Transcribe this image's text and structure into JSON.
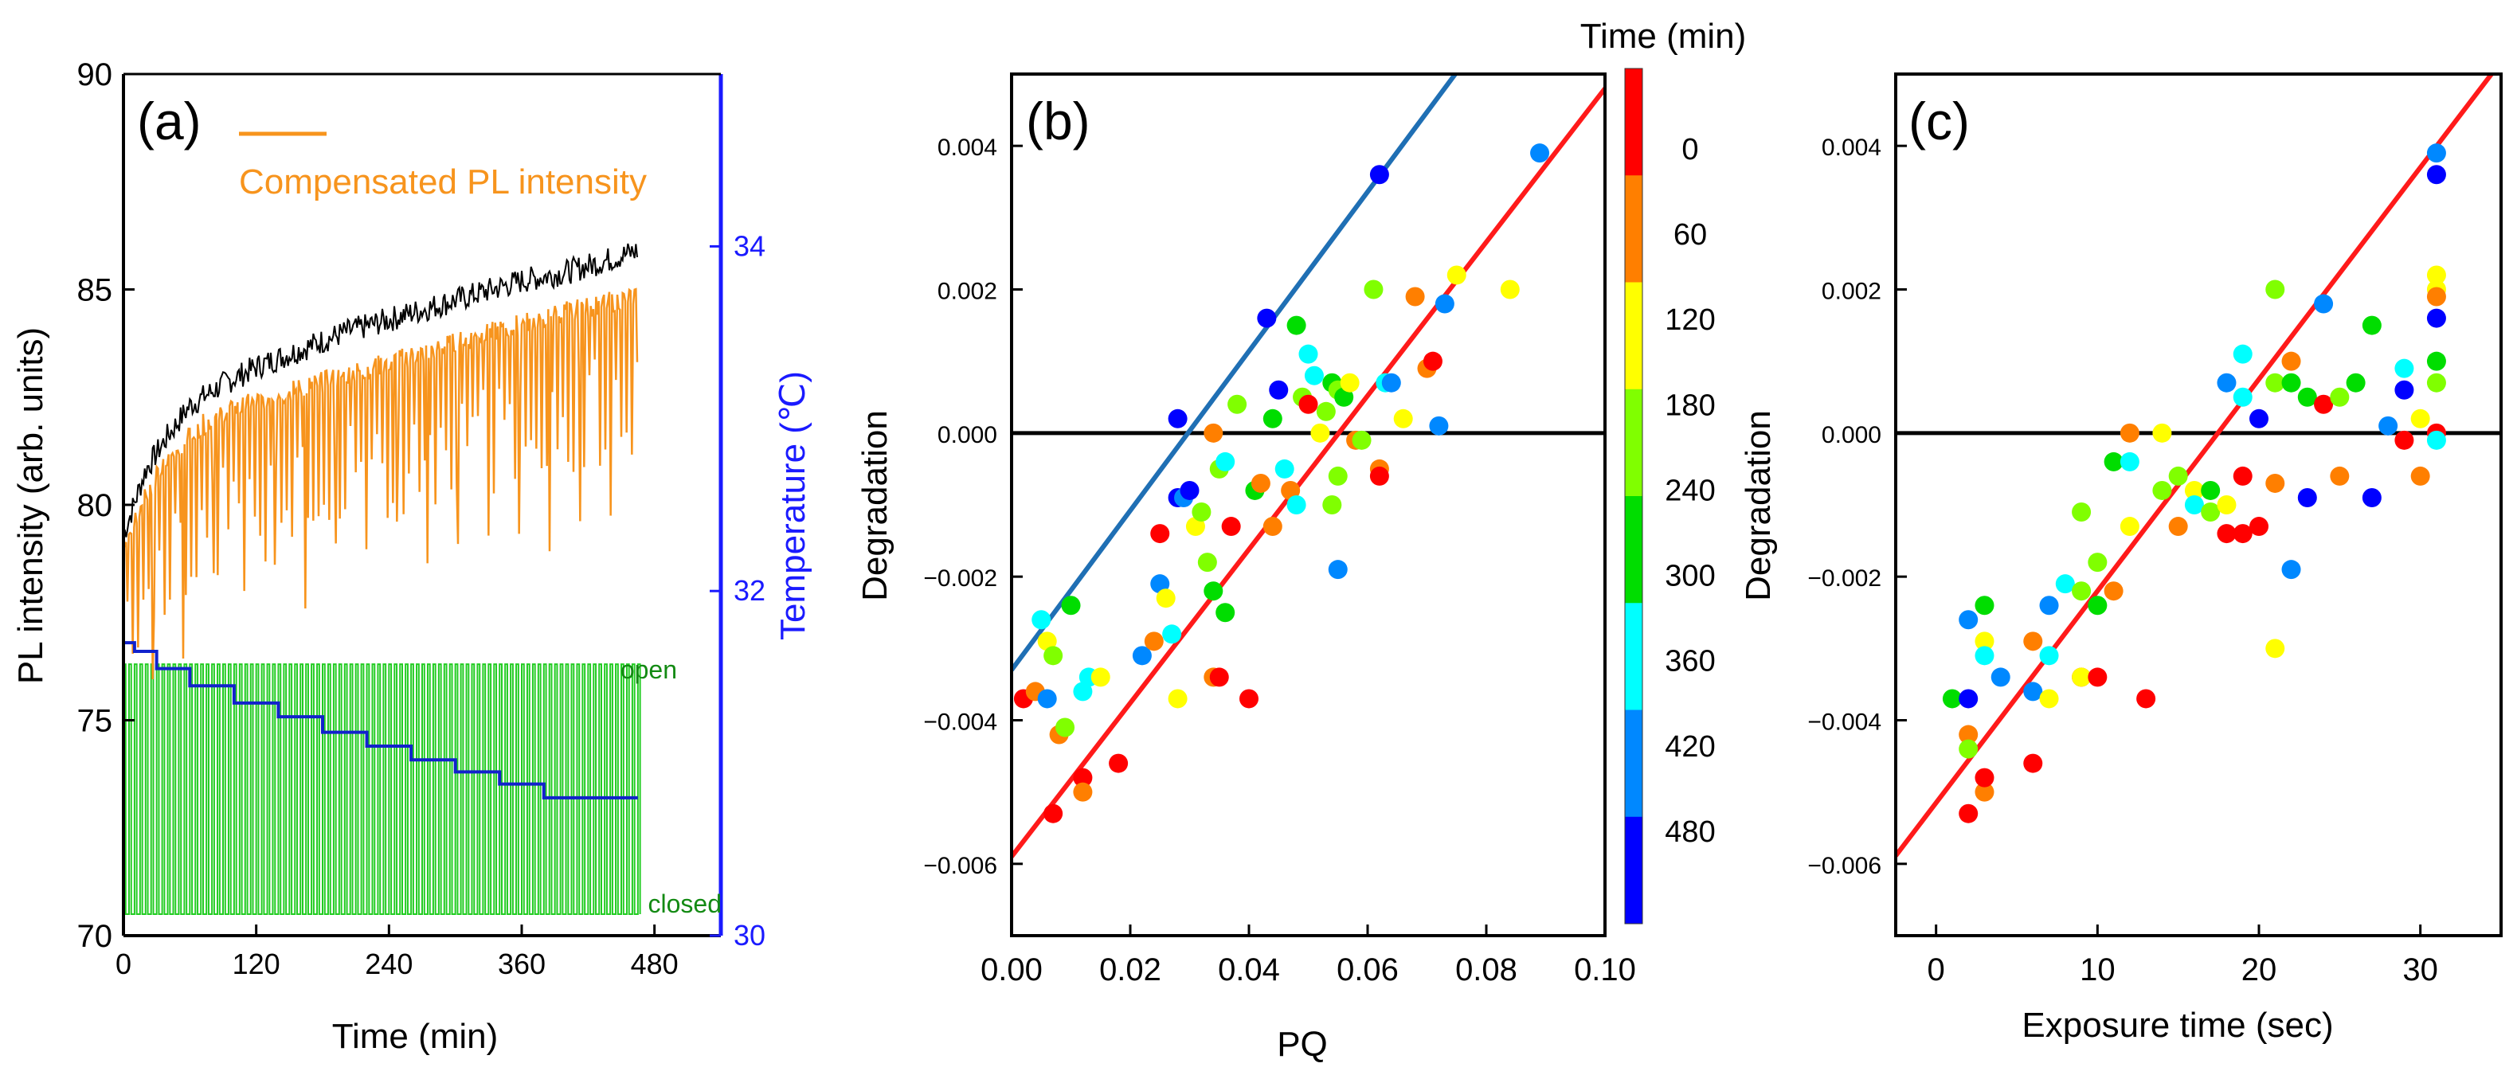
{
  "chart_data": [
    {
      "panel": "(a)",
      "type": "line",
      "xlabel": "Time (min)",
      "ylabel": "PL intensity (arb. units)",
      "y2label": "Temperature (℃)",
      "xlim": [
        0,
        540
      ],
      "ylim": [
        70,
        90
      ],
      "y2lim": [
        30,
        35
      ],
      "xticks": [
        0,
        120,
        240,
        360,
        480
      ],
      "xtick_labels": [
        "0",
        "120",
        "240",
        "360",
        "480"
      ],
      "yticks": [
        70,
        75,
        80,
        85,
        90
      ],
      "ytick_labels": [
        "70",
        "75",
        "80",
        "85",
        "90"
      ],
      "y2ticks": [
        30,
        32,
        34
      ],
      "y2tick_labels": [
        "30",
        "32",
        "34"
      ],
      "legend": "Compensated PL intensity",
      "shutter_labels": [
        "open",
        "closed"
      ],
      "colors": {
        "raw": "#000000",
        "compensated": "#f7941d",
        "temperature": "#1122cc",
        "shutter": "#22cc22",
        "y2axis": "#1a1aff"
      },
      "series": [
        {
          "name": "PL intensity",
          "color": "#000000",
          "x": [
            0,
            20,
            40,
            60,
            90,
            120,
            160,
            200,
            240,
            280,
            320,
            360,
            400,
            440,
            465
          ],
          "y": [
            79.3,
            80.8,
            81.6,
            82.3,
            82.8,
            83.2,
            83.6,
            84.0,
            84.3,
            84.6,
            84.9,
            85.2,
            85.4,
            85.7,
            85.9
          ]
        },
        {
          "name": "Compensated PL intensity",
          "color": "#f7941d",
          "x": [
            0,
            20,
            40,
            60,
            90,
            120,
            160,
            200,
            240,
            280,
            320,
            360,
            400,
            440,
            465
          ],
          "y": [
            79.0,
            80.3,
            81.0,
            81.7,
            82.1,
            82.4,
            82.7,
            83.0,
            83.3,
            83.6,
            83.9,
            84.2,
            84.5,
            84.7,
            84.9
          ]
        },
        {
          "name": "Temperature",
          "color": "#1122cc",
          "axis": "right",
          "x": [
            0,
            10,
            10,
            30,
            30,
            60,
            60,
            100,
            100,
            140,
            140,
            180,
            180,
            220,
            220,
            260,
            260,
            300,
            300,
            340,
            340,
            380,
            380,
            465
          ],
          "y": [
            31.7,
            31.7,
            31.65,
            31.65,
            31.55,
            31.55,
            31.45,
            31.45,
            31.35,
            31.35,
            31.27,
            31.27,
            31.18,
            31.18,
            31.1,
            31.1,
            31.02,
            31.02,
            30.95,
            30.95,
            30.88,
            30.88,
            30.8,
            30.8
          ]
        }
      ]
    },
    {
      "panel": "(b)",
      "type": "scatter",
      "xlabel": "PQ",
      "ylabel": "Degradation",
      "xlim": [
        0.0,
        0.1
      ],
      "ylim": [
        -0.007,
        0.005
      ],
      "xticks": [
        0.0,
        0.02,
        0.04,
        0.06,
        0.08,
        0.1
      ],
      "xtick_labels": [
        "0.00",
        "0.02",
        "0.04",
        "0.06",
        "0.08",
        "0.10"
      ],
      "yticks": [
        -0.006,
        -0.004,
        -0.002,
        0.0,
        0.002,
        0.004
      ],
      "ytick_labels": [
        "−0.006",
        "−0.004",
        "−0.002",
        "0.000",
        "0.002",
        "0.004"
      ],
      "colorbar": {
        "title": "Time (min)",
        "labels": [
          "0",
          "60",
          "120",
          "180",
          "240",
          "300",
          "360",
          "420",
          "480"
        ],
        "colors": [
          "#ff0000",
          "#ff7f00",
          "#ffff00",
          "#80ff00",
          "#00dd00",
          "#00ffff",
          "#0088ff",
          "#0000ff"
        ]
      },
      "lines": [
        {
          "color": "#1f6fb4",
          "slope": 0.111,
          "intercept": -0.0033
        },
        {
          "color": "#ff1a1a",
          "slope": 0.107,
          "intercept": -0.0059
        }
      ],
      "points": [
        {
          "x": 0.002,
          "y": -0.0037,
          "c": 0
        },
        {
          "x": 0.004,
          "y": -0.0036,
          "c": 1
        },
        {
          "x": 0.006,
          "y": -0.0029,
          "c": 2
        },
        {
          "x": 0.007,
          "y": -0.0031,
          "c": 3
        },
        {
          "x": 0.005,
          "y": -0.0026,
          "c": 5
        },
        {
          "x": 0.006,
          "y": -0.0037,
          "c": 6
        },
        {
          "x": 0.008,
          "y": -0.0042,
          "c": 1
        },
        {
          "x": 0.009,
          "y": -0.0041,
          "c": 3
        },
        {
          "x": 0.01,
          "y": -0.0024,
          "c": 4
        },
        {
          "x": 0.012,
          "y": -0.0048,
          "c": 0
        },
        {
          "x": 0.012,
          "y": -0.005,
          "c": 1
        },
        {
          "x": 0.013,
          "y": -0.0034,
          "c": 5
        },
        {
          "x": 0.015,
          "y": -0.0034,
          "c": 2
        },
        {
          "x": 0.018,
          "y": -0.0046,
          "c": 0
        },
        {
          "x": 0.007,
          "y": -0.0053,
          "c": 0
        },
        {
          "x": 0.012,
          "y": -0.0036,
          "c": 5
        },
        {
          "x": 0.022,
          "y": -0.0031,
          "c": 6
        },
        {
          "x": 0.024,
          "y": -0.0029,
          "c": 1
        },
        {
          "x": 0.025,
          "y": -0.0021,
          "c": 6
        },
        {
          "x": 0.025,
          "y": -0.0014,
          "c": 0
        },
        {
          "x": 0.026,
          "y": -0.0023,
          "c": 2
        },
        {
          "x": 0.027,
          "y": -0.0028,
          "c": 5
        },
        {
          "x": 0.028,
          "y": -0.0037,
          "c": 2
        },
        {
          "x": 0.028,
          "y": -0.0009,
          "c": 7
        },
        {
          "x": 0.029,
          "y": -0.0009,
          "c": 6
        },
        {
          "x": 0.03,
          "y": -0.0008,
          "c": 7
        },
        {
          "x": 0.028,
          "y": 0.0002,
          "c": 7
        },
        {
          "x": 0.031,
          "y": -0.0013,
          "c": 2
        },
        {
          "x": 0.032,
          "y": -0.0011,
          "c": 3
        },
        {
          "x": 0.033,
          "y": -0.0018,
          "c": 3
        },
        {
          "x": 0.034,
          "y": -0.0022,
          "c": 4
        },
        {
          "x": 0.034,
          "y": -0.0034,
          "c": 1
        },
        {
          "x": 0.035,
          "y": -0.0034,
          "c": 0
        },
        {
          "x": 0.036,
          "y": -0.0025,
          "c": 4
        },
        {
          "x": 0.037,
          "y": -0.0013,
          "c": 0
        },
        {
          "x": 0.038,
          "y": 0.0004,
          "c": 3
        },
        {
          "x": 0.034,
          "y": 0.0,
          "c": 1
        },
        {
          "x": 0.035,
          "y": -0.0005,
          "c": 3
        },
        {
          "x": 0.036,
          "y": -0.0004,
          "c": 5
        },
        {
          "x": 0.04,
          "y": -0.0037,
          "c": 0
        },
        {
          "x": 0.041,
          "y": -0.0008,
          "c": 4
        },
        {
          "x": 0.042,
          "y": -0.0007,
          "c": 1
        },
        {
          "x": 0.043,
          "y": 0.0016,
          "c": 7
        },
        {
          "x": 0.044,
          "y": 0.0002,
          "c": 4
        },
        {
          "x": 0.044,
          "y": -0.0013,
          "c": 1
        },
        {
          "x": 0.045,
          "y": 0.0006,
          "c": 7
        },
        {
          "x": 0.046,
          "y": -0.0005,
          "c": 5
        },
        {
          "x": 0.047,
          "y": -0.0008,
          "c": 1
        },
        {
          "x": 0.048,
          "y": -0.001,
          "c": 5
        },
        {
          "x": 0.048,
          "y": 0.0015,
          "c": 4
        },
        {
          "x": 0.049,
          "y": 0.0005,
          "c": 3
        },
        {
          "x": 0.05,
          "y": 0.0004,
          "c": 0
        },
        {
          "x": 0.05,
          "y": 0.0011,
          "c": 5
        },
        {
          "x": 0.051,
          "y": 0.0008,
          "c": 5
        },
        {
          "x": 0.052,
          "y": 0.0,
          "c": 2
        },
        {
          "x": 0.053,
          "y": 0.0003,
          "c": 3
        },
        {
          "x": 0.054,
          "y": 0.0007,
          "c": 4
        },
        {
          "x": 0.054,
          "y": -0.001,
          "c": 3
        },
        {
          "x": 0.055,
          "y": 0.0006,
          "c": 3
        },
        {
          "x": 0.055,
          "y": -0.0019,
          "c": 6
        },
        {
          "x": 0.056,
          "y": 0.0005,
          "c": 4
        },
        {
          "x": 0.057,
          "y": 0.0007,
          "c": 2
        },
        {
          "x": 0.055,
          "y": -0.0006,
          "c": 3
        },
        {
          "x": 0.058,
          "y": -0.0001,
          "c": 1
        },
        {
          "x": 0.059,
          "y": -0.0001,
          "c": 3
        },
        {
          "x": 0.061,
          "y": 0.002,
          "c": 3
        },
        {
          "x": 0.062,
          "y": -0.0005,
          "c": 1
        },
        {
          "x": 0.062,
          "y": -0.0006,
          "c": 0
        },
        {
          "x": 0.062,
          "y": 0.0036,
          "c": 7
        },
        {
          "x": 0.063,
          "y": 0.0007,
          "c": 5
        },
        {
          "x": 0.064,
          "y": 0.0007,
          "c": 6
        },
        {
          "x": 0.066,
          "y": 0.0002,
          "c": 2
        },
        {
          "x": 0.068,
          "y": 0.0019,
          "c": 1
        },
        {
          "x": 0.07,
          "y": 0.0009,
          "c": 1
        },
        {
          "x": 0.071,
          "y": 0.001,
          "c": 0
        },
        {
          "x": 0.072,
          "y": 0.0001,
          "c": 6
        },
        {
          "x": 0.073,
          "y": 0.0018,
          "c": 6
        },
        {
          "x": 0.075,
          "y": 0.0022,
          "c": 2
        },
        {
          "x": 0.084,
          "y": 0.002,
          "c": 2
        },
        {
          "x": 0.089,
          "y": 0.0039,
          "c": 6
        }
      ]
    },
    {
      "panel": "(c)",
      "type": "scatter",
      "xlabel": "Exposure time (sec)",
      "ylabel": "Degradation",
      "xlim": [
        -2.5,
        35
      ],
      "ylim": [
        -0.007,
        0.005
      ],
      "xticks": [
        0,
        10,
        20,
        30
      ],
      "xtick_labels": [
        "0",
        "10",
        "20",
        "30"
      ],
      "yticks": [
        -0.006,
        -0.004,
        -0.002,
        0.0,
        0.002,
        0.004
      ],
      "ytick_labels": [
        "−0.006",
        "−0.004",
        "−0.002",
        "0.000",
        "0.002",
        "0.004"
      ],
      "lines": [
        {
          "color": "#ff1a1a",
          "slope": 0.000295,
          "intercept": -0.00515
        }
      ],
      "points": [
        {
          "x": 1,
          "y": -0.0037,
          "c": 4
        },
        {
          "x": 2,
          "y": -0.0053,
          "c": 0
        },
        {
          "x": 2,
          "y": -0.0042,
          "c": 1
        },
        {
          "x": 2,
          "y": -0.0044,
          "c": 3
        },
        {
          "x": 2,
          "y": -0.0026,
          "c": 6
        },
        {
          "x": 2,
          "y": -0.0037,
          "c": 7
        },
        {
          "x": 3,
          "y": -0.005,
          "c": 1
        },
        {
          "x": 3,
          "y": -0.0048,
          "c": 0
        },
        {
          "x": 3,
          "y": -0.0029,
          "c": 2
        },
        {
          "x": 3,
          "y": -0.0031,
          "c": 5
        },
        {
          "x": 3,
          "y": -0.0024,
          "c": 4
        },
        {
          "x": 4,
          "y": -0.0034,
          "c": 6
        },
        {
          "x": 6,
          "y": -0.0046,
          "c": 0
        },
        {
          "x": 6,
          "y": -0.0029,
          "c": 1
        },
        {
          "x": 6,
          "y": -0.0036,
          "c": 6
        },
        {
          "x": 7,
          "y": -0.0037,
          "c": 2
        },
        {
          "x": 7,
          "y": -0.0024,
          "c": 6
        },
        {
          "x": 7,
          "y": -0.0031,
          "c": 5
        },
        {
          "x": 8,
          "y": -0.0021,
          "c": 5
        },
        {
          "x": 9,
          "y": -0.0022,
          "c": 3
        },
        {
          "x": 9,
          "y": -0.0011,
          "c": 3
        },
        {
          "x": 9,
          "y": -0.0034,
          "c": 0
        },
        {
          "x": 9,
          "y": -0.0034,
          "c": 2
        },
        {
          "x": 10,
          "y": -0.0018,
          "c": 3
        },
        {
          "x": 10,
          "y": -0.0024,
          "c": 4
        },
        {
          "x": 10,
          "y": -0.0034,
          "c": 0
        },
        {
          "x": 11,
          "y": -0.0022,
          "c": 1
        },
        {
          "x": 11,
          "y": -0.0004,
          "c": 4
        },
        {
          "x": 12,
          "y": 0.0,
          "c": 1
        },
        {
          "x": 12,
          "y": -0.0013,
          "c": 2
        },
        {
          "x": 12,
          "y": -0.0004,
          "c": 5
        },
        {
          "x": 13,
          "y": -0.0037,
          "c": 0
        },
        {
          "x": 14,
          "y": 0.0,
          "c": 2
        },
        {
          "x": 14,
          "y": -0.0008,
          "c": 3
        },
        {
          "x": 15,
          "y": -0.0013,
          "c": 1
        },
        {
          "x": 15,
          "y": -0.0006,
          "c": 3
        },
        {
          "x": 16,
          "y": -0.0008,
          "c": 2
        },
        {
          "x": 16,
          "y": -0.001,
          "c": 5
        },
        {
          "x": 17,
          "y": -0.0011,
          "c": 3
        },
        {
          "x": 17,
          "y": -0.0008,
          "c": 4
        },
        {
          "x": 18,
          "y": 0.0007,
          "c": 6
        },
        {
          "x": 18,
          "y": -0.0014,
          "c": 0
        },
        {
          "x": 18,
          "y": -0.001,
          "c": 2
        },
        {
          "x": 19,
          "y": 0.0011,
          "c": 5
        },
        {
          "x": 19,
          "y": 0.0005,
          "c": 5
        },
        {
          "x": 19,
          "y": -0.0014,
          "c": 0
        },
        {
          "x": 19,
          "y": -0.0006,
          "c": 0
        },
        {
          "x": 20,
          "y": 0.0002,
          "c": 7
        },
        {
          "x": 20,
          "y": -0.0013,
          "c": 0
        },
        {
          "x": 21,
          "y": 0.002,
          "c": 3
        },
        {
          "x": 21,
          "y": -0.003,
          "c": 2
        },
        {
          "x": 21,
          "y": -0.0007,
          "c": 1
        },
        {
          "x": 21,
          "y": 0.0007,
          "c": 3
        },
        {
          "x": 22,
          "y": 0.001,
          "c": 1
        },
        {
          "x": 22,
          "y": 0.0007,
          "c": 4
        },
        {
          "x": 22,
          "y": -0.0019,
          "c": 6
        },
        {
          "x": 23,
          "y": -0.0009,
          "c": 7
        },
        {
          "x": 23,
          "y": 0.0005,
          "c": 4
        },
        {
          "x": 24,
          "y": 0.0004,
          "c": 0
        },
        {
          "x": 24,
          "y": 0.0018,
          "c": 6
        },
        {
          "x": 25,
          "y": 0.0005,
          "c": 3
        },
        {
          "x": 25,
          "y": -0.0006,
          "c": 1
        },
        {
          "x": 26,
          "y": 0.0007,
          "c": 4
        },
        {
          "x": 27,
          "y": 0.0015,
          "c": 4
        },
        {
          "x": 27,
          "y": -0.0009,
          "c": 7
        },
        {
          "x": 28,
          "y": 0.0001,
          "c": 6
        },
        {
          "x": 29,
          "y": 0.0006,
          "c": 7
        },
        {
          "x": 29,
          "y": 0.0009,
          "c": 5
        },
        {
          "x": 29,
          "y": -0.0001,
          "c": 0
        },
        {
          "x": 30,
          "y": 0.0002,
          "c": 2
        },
        {
          "x": 30,
          "y": -0.0006,
          "c": 1
        },
        {
          "x": 31,
          "y": 0.0039,
          "c": 6
        },
        {
          "x": 31,
          "y": 0.0036,
          "c": 7
        },
        {
          "x": 31,
          "y": 0.0022,
          "c": 2
        },
        {
          "x": 31,
          "y": 0.002,
          "c": 2
        },
        {
          "x": 31,
          "y": 0.0019,
          "c": 1
        },
        {
          "x": 31,
          "y": 0.0016,
          "c": 7
        },
        {
          "x": 31,
          "y": 0.001,
          "c": 4
        },
        {
          "x": 31,
          "y": 0.0007,
          "c": 3
        },
        {
          "x": 31,
          "y": 0.0,
          "c": 0
        },
        {
          "x": 31,
          "y": -0.0001,
          "c": 5
        }
      ]
    }
  ]
}
